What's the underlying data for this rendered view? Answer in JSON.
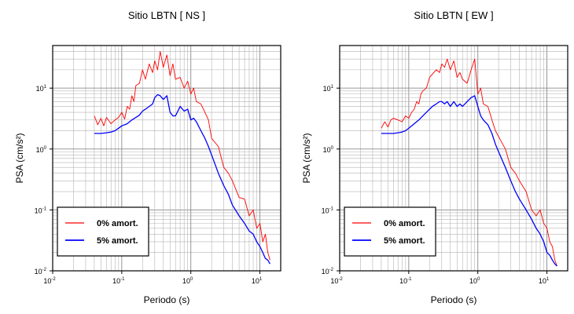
{
  "chart_data": [
    {
      "type": "line",
      "title": "Sitio LBTN [ NS ]",
      "xlabel": "Periodo (s)",
      "ylabel": "PSA (cm/s²)",
      "xscale": "log",
      "yscale": "log",
      "xlim": [
        0.01,
        20
      ],
      "ylim": [
        0.01,
        50
      ],
      "x_ticks": [
        "10-2",
        "10-1",
        "100",
        "101"
      ],
      "y_ticks": [
        "10-2",
        "10-1",
        "100",
        "101"
      ],
      "grid": true,
      "legend_placement": "bottom-left",
      "series": [
        {
          "name": "0% amort.",
          "color": "#ff0000",
          "x": [
            0.04,
            0.045,
            0.05,
            0.055,
            0.06,
            0.07,
            0.08,
            0.09,
            0.1,
            0.11,
            0.12,
            0.13,
            0.14,
            0.15,
            0.16,
            0.18,
            0.2,
            0.22,
            0.25,
            0.28,
            0.3,
            0.33,
            0.36,
            0.4,
            0.45,
            0.5,
            0.55,
            0.6,
            0.7,
            0.8,
            0.9,
            1.0,
            1.1,
            1.2,
            1.4,
            1.6,
            1.8,
            2.0,
            2.5,
            3.0,
            3.5,
            4.0,
            5.0,
            6.0,
            7.0,
            8.0,
            9.0,
            10.0,
            11.0,
            12.0,
            13.0,
            14.0
          ],
          "values": [
            3.5,
            2.5,
            3.2,
            2.4,
            3.3,
            2.6,
            3.0,
            3.3,
            4.0,
            3.1,
            5.0,
            4.5,
            7.5,
            6.0,
            11.0,
            12.0,
            20.0,
            14.0,
            25.0,
            18.0,
            28.0,
            20.0,
            40.0,
            22.0,
            35.0,
            16.0,
            25.0,
            14.0,
            15.0,
            10.0,
            13.0,
            8.0,
            10.0,
            6.0,
            5.5,
            4.0,
            3.0,
            1.5,
            1.1,
            0.5,
            0.4,
            0.3,
            0.16,
            0.15,
            0.08,
            0.1,
            0.05,
            0.06,
            0.03,
            0.04,
            0.02,
            0.015
          ]
        },
        {
          "name": "5% amort.",
          "color": "#0000ff",
          "x": [
            0.04,
            0.05,
            0.06,
            0.07,
            0.08,
            0.09,
            0.1,
            0.12,
            0.14,
            0.16,
            0.18,
            0.2,
            0.22,
            0.25,
            0.28,
            0.3,
            0.33,
            0.36,
            0.4,
            0.45,
            0.5,
            0.55,
            0.6,
            0.7,
            0.8,
            0.9,
            1.0,
            1.1,
            1.2,
            1.4,
            1.6,
            1.8,
            2.0,
            2.5,
            3.0,
            3.5,
            4.0,
            5.0,
            6.0,
            7.0,
            8.0,
            9.0,
            10.0,
            11.0,
            12.0,
            13.0,
            14.0
          ],
          "values": [
            1.8,
            1.8,
            1.85,
            1.9,
            2.0,
            2.2,
            2.4,
            2.6,
            3.0,
            3.3,
            3.6,
            4.2,
            4.5,
            5.0,
            5.5,
            7.0,
            7.8,
            7.5,
            6.5,
            7.5,
            4.0,
            3.5,
            3.5,
            5.0,
            4.2,
            4.5,
            3.0,
            3.2,
            2.8,
            2.0,
            1.5,
            1.1,
            0.8,
            0.4,
            0.25,
            0.18,
            0.12,
            0.08,
            0.06,
            0.045,
            0.04,
            0.03,
            0.025,
            0.02,
            0.016,
            0.015,
            0.013
          ]
        }
      ]
    },
    {
      "type": "line",
      "title": "Sitio LBTN [ EW ]",
      "xlabel": "Periodo (s)",
      "ylabel": "PSA (cm/s²)",
      "xscale": "log",
      "yscale": "log",
      "xlim": [
        0.01,
        20
      ],
      "ylim": [
        0.01,
        50
      ],
      "x_ticks": [
        "10-2",
        "10-1",
        "100",
        "101"
      ],
      "y_ticks": [
        "10-2",
        "10-1",
        "100",
        "101"
      ],
      "grid": true,
      "legend_placement": "bottom-left",
      "series": [
        {
          "name": "0% amort.",
          "color": "#ff0000",
          "x": [
            0.04,
            0.045,
            0.05,
            0.055,
            0.06,
            0.07,
            0.08,
            0.09,
            0.1,
            0.11,
            0.12,
            0.13,
            0.14,
            0.15,
            0.16,
            0.18,
            0.2,
            0.22,
            0.25,
            0.28,
            0.3,
            0.33,
            0.36,
            0.4,
            0.45,
            0.5,
            0.55,
            0.6,
            0.7,
            0.8,
            0.9,
            1.0,
            1.1,
            1.2,
            1.4,
            1.6,
            1.8,
            2.0,
            2.5,
            3.0,
            3.5,
            4.0,
            5.0,
            6.0,
            7.0,
            8.0,
            9.0,
            10.0,
            11.0,
            12.0,
            13.0,
            14.0
          ],
          "values": [
            2.2,
            2.8,
            2.3,
            3.0,
            3.2,
            3.0,
            2.8,
            3.5,
            3.2,
            4.0,
            4.5,
            6.0,
            5.5,
            8.0,
            9.0,
            10.0,
            15.0,
            17.0,
            20.0,
            18.0,
            25.0,
            22.0,
            30.0,
            20.0,
            28.0,
            15.0,
            18.0,
            14.0,
            12.0,
            20.0,
            30.0,
            8.0,
            10.0,
            5.5,
            5.0,
            3.0,
            2.0,
            1.6,
            1.0,
            0.5,
            0.4,
            0.3,
            0.2,
            0.1,
            0.08,
            0.1,
            0.06,
            0.05,
            0.03,
            0.025,
            0.015,
            0.012
          ]
        },
        {
          "name": "5% amort.",
          "color": "#0000ff",
          "x": [
            0.04,
            0.05,
            0.06,
            0.07,
            0.08,
            0.09,
            0.1,
            0.12,
            0.14,
            0.16,
            0.18,
            0.2,
            0.22,
            0.25,
            0.28,
            0.3,
            0.33,
            0.36,
            0.4,
            0.45,
            0.5,
            0.55,
            0.6,
            0.7,
            0.8,
            0.9,
            1.0,
            1.1,
            1.2,
            1.4,
            1.6,
            1.8,
            2.0,
            2.5,
            3.0,
            3.5,
            4.0,
            5.0,
            6.0,
            7.0,
            8.0,
            9.0,
            10.0,
            11.0,
            12.0,
            13.0,
            14.0
          ],
          "values": [
            1.8,
            1.8,
            1.8,
            1.85,
            1.9,
            2.0,
            2.2,
            2.6,
            3.0,
            3.5,
            4.0,
            4.5,
            5.0,
            5.5,
            6.0,
            6.0,
            5.5,
            6.0,
            5.0,
            6.0,
            5.0,
            5.5,
            5.0,
            6.0,
            7.0,
            7.5,
            5.0,
            3.5,
            3.0,
            2.5,
            1.8,
            1.2,
            0.9,
            0.5,
            0.3,
            0.2,
            0.15,
            0.1,
            0.07,
            0.05,
            0.04,
            0.03,
            0.02,
            0.018,
            0.015,
            0.013,
            0.012
          ]
        }
      ]
    }
  ]
}
